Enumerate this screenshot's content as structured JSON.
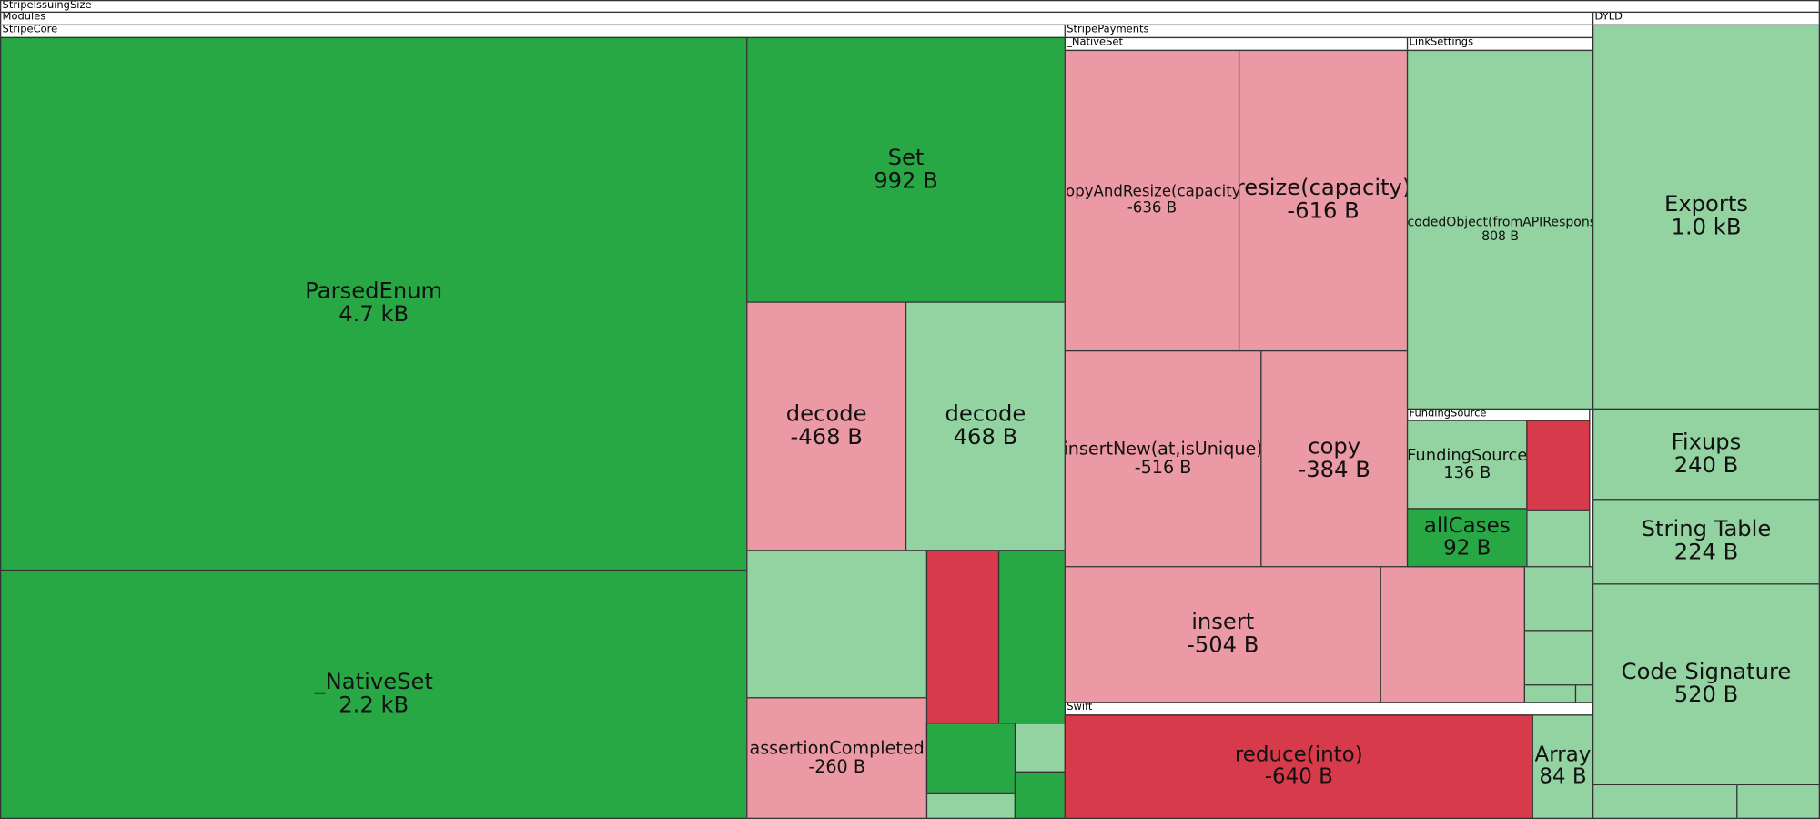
{
  "headers": [
    "StripeIssuingSize",
    "Modules",
    "DYLD",
    "StripeCore",
    "StripePayments",
    "_NativeSet",
    "LinkSettings",
    "FundingSource",
    "Swift"
  ],
  "nodes": [
    {
      "label": "ParsedEnum",
      "size": "4.7 kB"
    },
    {
      "label": "_NativeSet",
      "size": "2.2 kB"
    },
    {
      "label": "Set",
      "size": "992 B"
    },
    {
      "label": "decode",
      "size": "-468 B"
    },
    {
      "label": "decode",
      "size": "468 B"
    },
    {
      "label": "assertionCompleted",
      "size": "-260 B"
    },
    {
      "label": "copyAndResize(capacity)",
      "size": "-636 B"
    },
    {
      "label": "resize(capacity)",
      "size": "-616 B"
    },
    {
      "label": "insertNew(at,isUnique)",
      "size": "-516 B"
    },
    {
      "label": "copy",
      "size": "-384 B"
    },
    {
      "label": "insert",
      "size": "-504 B"
    },
    {
      "label": "decodedObject(fromAPIResponse)",
      "size": "808 B"
    },
    {
      "label": "FundingSource",
      "size": "136 B"
    },
    {
      "label": "allCases",
      "size": "92 B"
    },
    {
      "label": "reduce(into)",
      "size": "-640 B"
    },
    {
      "label": "Array",
      "size": "84 B"
    },
    {
      "label": "Exports",
      "size": "1.0 kB"
    },
    {
      "label": "Fixups",
      "size": "240 B"
    },
    {
      "label": "String Table",
      "size": "224 B"
    },
    {
      "label": "Code Signature",
      "size": "520 B"
    }
  ]
}
